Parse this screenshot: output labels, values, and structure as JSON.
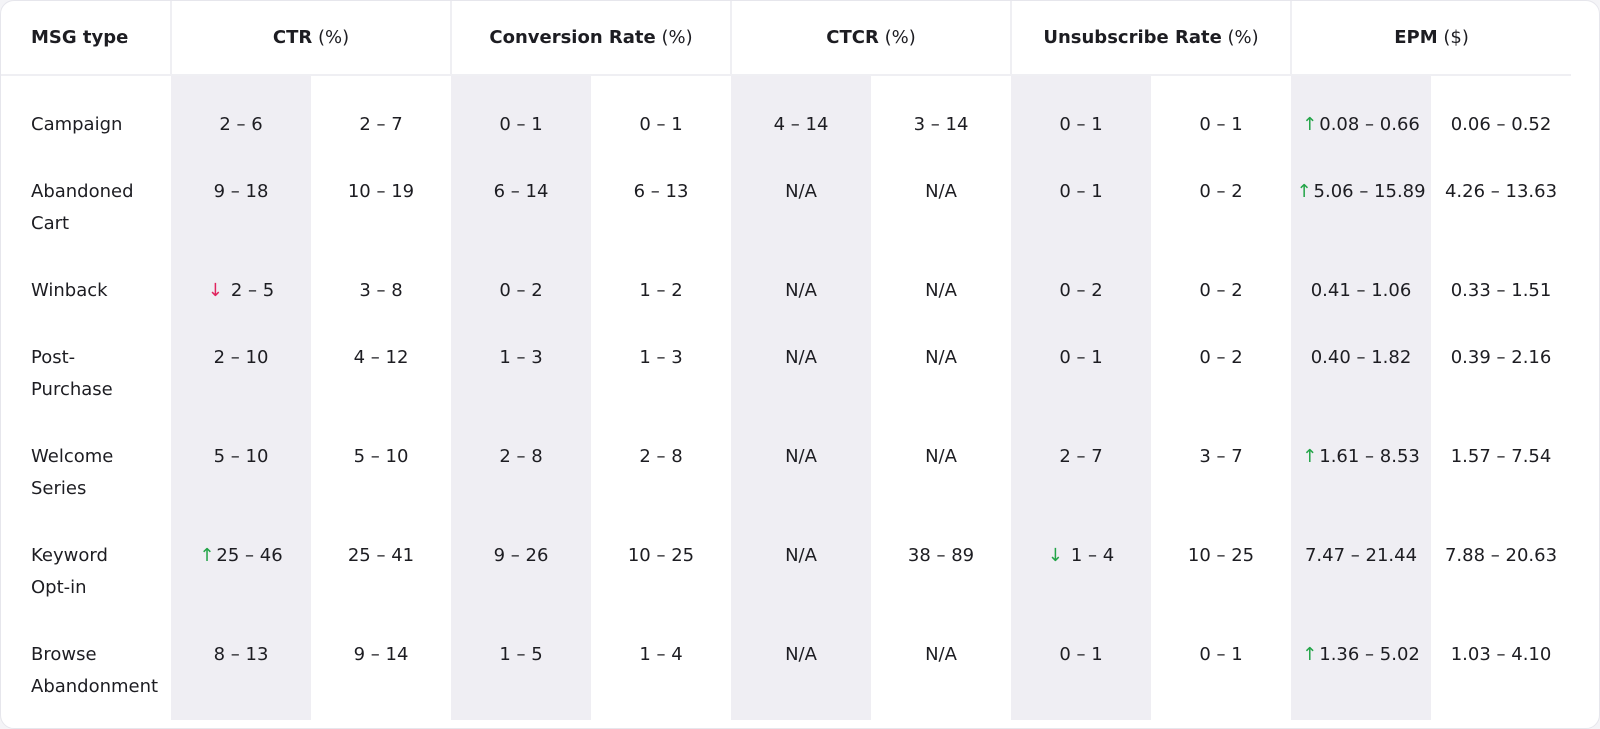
{
  "table": {
    "corner": "MSG type",
    "columns": [
      {
        "name": "CTR",
        "unit": "(%)"
      },
      {
        "name": "Conversion Rate",
        "unit": "(%)"
      },
      {
        "name": "CTCR",
        "unit": "(%)"
      },
      {
        "name": "Unsubscribe Rate",
        "unit": "(%)"
      },
      {
        "name": "EPM",
        "unit": "($)"
      }
    ],
    "shade_color": "#efeef3",
    "rows": [
      {
        "label": "Campaign",
        "cells": [
          {
            "text": "2 – 6"
          },
          {
            "text": "2 – 7"
          },
          {
            "text": "0 – 1"
          },
          {
            "text": "0 – 1"
          },
          {
            "text": "4 – 14"
          },
          {
            "text": "3 – 14"
          },
          {
            "text": "0 – 1"
          },
          {
            "text": "0 – 1"
          },
          {
            "text": "0.08 – 0.66",
            "arrow": "↑",
            "arrow_color": "#22a447"
          },
          {
            "text": "0.06 – 0.52"
          }
        ]
      },
      {
        "label": "Abandoned Cart",
        "cells": [
          {
            "text": "9 – 18"
          },
          {
            "text": "10 – 19"
          },
          {
            "text": "6 – 14"
          },
          {
            "text": "6 – 13"
          },
          {
            "text": "N/A"
          },
          {
            "text": "N/A"
          },
          {
            "text": "0 – 1"
          },
          {
            "text": "0 – 2"
          },
          {
            "text": "5.06 – 15.89",
            "arrow": "↑",
            "arrow_color": "#22a447"
          },
          {
            "text": "4.26 – 13.63"
          }
        ]
      },
      {
        "label": "Winback",
        "cells": [
          {
            "text": "2 – 5",
            "arrow": "↓",
            "arrow_color": "#e0245e"
          },
          {
            "text": "3 – 8"
          },
          {
            "text": "0 – 2"
          },
          {
            "text": "1 – 2"
          },
          {
            "text": "N/A"
          },
          {
            "text": "N/A"
          },
          {
            "text": "0 – 2"
          },
          {
            "text": "0 – 2"
          },
          {
            "text": "0.41 – 1.06"
          },
          {
            "text": "0.33 – 1.51"
          }
        ]
      },
      {
        "label": "Post-Purchase",
        "cells": [
          {
            "text": "2 – 10"
          },
          {
            "text": "4 – 12"
          },
          {
            "text": "1 – 3"
          },
          {
            "text": "1 – 3"
          },
          {
            "text": "N/A"
          },
          {
            "text": "N/A"
          },
          {
            "text": "0 – 1"
          },
          {
            "text": "0 – 2"
          },
          {
            "text": "0.40 – 1.82"
          },
          {
            "text": "0.39 – 2.16"
          }
        ]
      },
      {
        "label": "Welcome Series",
        "cells": [
          {
            "text": "5 – 10"
          },
          {
            "text": "5 – 10"
          },
          {
            "text": "2 – 8"
          },
          {
            "text": "2 – 8"
          },
          {
            "text": "N/A"
          },
          {
            "text": "N/A"
          },
          {
            "text": "2 – 7"
          },
          {
            "text": "3 – 7"
          },
          {
            "text": "1.61 – 8.53",
            "arrow": "↑",
            "arrow_color": "#22a447"
          },
          {
            "text": "1.57 – 7.54"
          }
        ]
      },
      {
        "label": "Keyword Opt-in",
        "cells": [
          {
            "text": "25 – 46",
            "arrow": "↑",
            "arrow_color": "#22a447"
          },
          {
            "text": "25 – 41"
          },
          {
            "text": "9 – 26"
          },
          {
            "text": "10 – 25"
          },
          {
            "text": "N/A"
          },
          {
            "text": "38 – 89"
          },
          {
            "text": "1 – 4",
            "arrow": "↓",
            "arrow_color": "#22a447"
          },
          {
            "text": "10 – 25"
          },
          {
            "text": "7.47 – 21.44"
          },
          {
            "text": "7.88 – 20.63"
          }
        ]
      },
      {
        "label": "Browse Abandonment",
        "cells": [
          {
            "text": "8 – 13"
          },
          {
            "text": "9 – 14"
          },
          {
            "text": "1 – 5"
          },
          {
            "text": "1 – 4"
          },
          {
            "text": "N/A"
          },
          {
            "text": "N/A"
          },
          {
            "text": "0 – 1"
          },
          {
            "text": "0 – 1"
          },
          {
            "text": "1.36 – 5.02",
            "arrow": "↑",
            "arrow_color": "#22a447"
          },
          {
            "text": "1.03 – 4.10"
          }
        ]
      }
    ]
  }
}
